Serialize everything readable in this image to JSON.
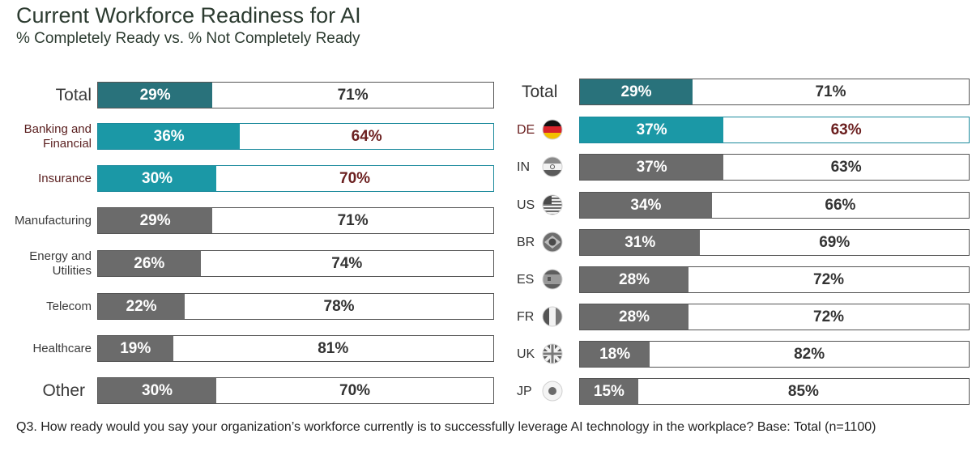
{
  "colors": {
    "dark_teal": "#29727b",
    "teal": "#1b98a6",
    "gray": "#6b6b6b"
  },
  "chart_data": [
    {
      "type": "bar",
      "title": "Current Workforce Readiness for AI",
      "subtitle": "% Completely Ready vs. % Not Completely Ready",
      "series_names": [
        "% Completely Ready",
        "% Not Completely Ready"
      ],
      "categories": [
        "Total",
        "Banking and Financial",
        "Insurance",
        "Manufacturing",
        "Energy and Utilities",
        "Telecom",
        "Healthcare",
        "Other"
      ],
      "ready": [
        29,
        36,
        30,
        29,
        26,
        22,
        19,
        30
      ],
      "not_ready": [
        71,
        64,
        70,
        71,
        74,
        78,
        81,
        70
      ],
      "rows": [
        {
          "label": "Total",
          "style": "total",
          "ready": 29,
          "not": 71,
          "ready_label": "29%",
          "not_label": "71%"
        },
        {
          "label": "Banking and Financial",
          "style": "highlight",
          "ready": 36,
          "not": 64,
          "ready_label": "36%",
          "not_label": "64%"
        },
        {
          "label": "Insurance",
          "style": "highlight",
          "ready": 30,
          "not": 70,
          "ready_label": "30%",
          "not_label": "70%"
        },
        {
          "label": "Manufacturing",
          "style": "normal",
          "ready": 29,
          "not": 71,
          "ready_label": "29%",
          "not_label": "71%"
        },
        {
          "label": "Energy and Utilities",
          "style": "normal",
          "ready": 26,
          "not": 74,
          "ready_label": "26%",
          "not_label": "74%"
        },
        {
          "label": "Telecom",
          "style": "normal",
          "ready": 22,
          "not": 78,
          "ready_label": "22%",
          "not_label": "78%"
        },
        {
          "label": "Healthcare",
          "style": "normal",
          "ready": 19,
          "not": 81,
          "ready_label": "19%",
          "not_label": "81%"
        },
        {
          "label": "Other",
          "style": "other",
          "ready": 30,
          "not": 70,
          "ready_label": "30%",
          "not_label": "70%"
        }
      ]
    },
    {
      "type": "bar",
      "categories": [
        "Total",
        "DE",
        "IN",
        "US",
        "BR",
        "ES",
        "FR",
        "UK",
        "JP"
      ],
      "ready": [
        29,
        37,
        37,
        34,
        31,
        28,
        28,
        18,
        15
      ],
      "not_ready": [
        71,
        63,
        63,
        66,
        69,
        72,
        72,
        82,
        85
      ],
      "rows": [
        {
          "label": "Total",
          "style": "total",
          "ready": 29,
          "not": 71,
          "ready_label": "29%",
          "not_label": "71%",
          "flag": ""
        },
        {
          "label": "DE",
          "style": "highlight",
          "ready": 37,
          "not": 63,
          "ready_label": "37%",
          "not_label": "63%",
          "flag": "germany-flag-icon"
        },
        {
          "label": "IN",
          "style": "normal",
          "ready": 37,
          "not": 63,
          "ready_label": "37%",
          "not_label": "63%",
          "flag": "india-flag-icon"
        },
        {
          "label": "US",
          "style": "normal",
          "ready": 34,
          "not": 66,
          "ready_label": "34%",
          "not_label": "66%",
          "flag": "usa-flag-icon"
        },
        {
          "label": "BR",
          "style": "normal",
          "ready": 31,
          "not": 69,
          "ready_label": "31%",
          "not_label": "69%",
          "flag": "brazil-flag-icon"
        },
        {
          "label": "ES",
          "style": "normal",
          "ready": 28,
          "not": 72,
          "ready_label": "28%",
          "not_label": "72%",
          "flag": "spain-flag-icon"
        },
        {
          "label": "FR",
          "style": "normal",
          "ready": 28,
          "not": 72,
          "ready_label": "28%",
          "not_label": "72%",
          "flag": "france-flag-icon"
        },
        {
          "label": "UK",
          "style": "normal",
          "ready": 18,
          "not": 82,
          "ready_label": "18%",
          "not_label": "82%",
          "flag": "uk-flag-icon"
        },
        {
          "label": "JP",
          "style": "normal",
          "ready": 15,
          "not": 85,
          "ready_label": "15%",
          "not_label": "85%",
          "flag": "japan-flag-icon"
        }
      ]
    }
  ],
  "footnote": "Q3. How ready would you say your organization’s workforce currently is to successfully leverage AI technology in the workplace? Base: Total (n=1100)"
}
